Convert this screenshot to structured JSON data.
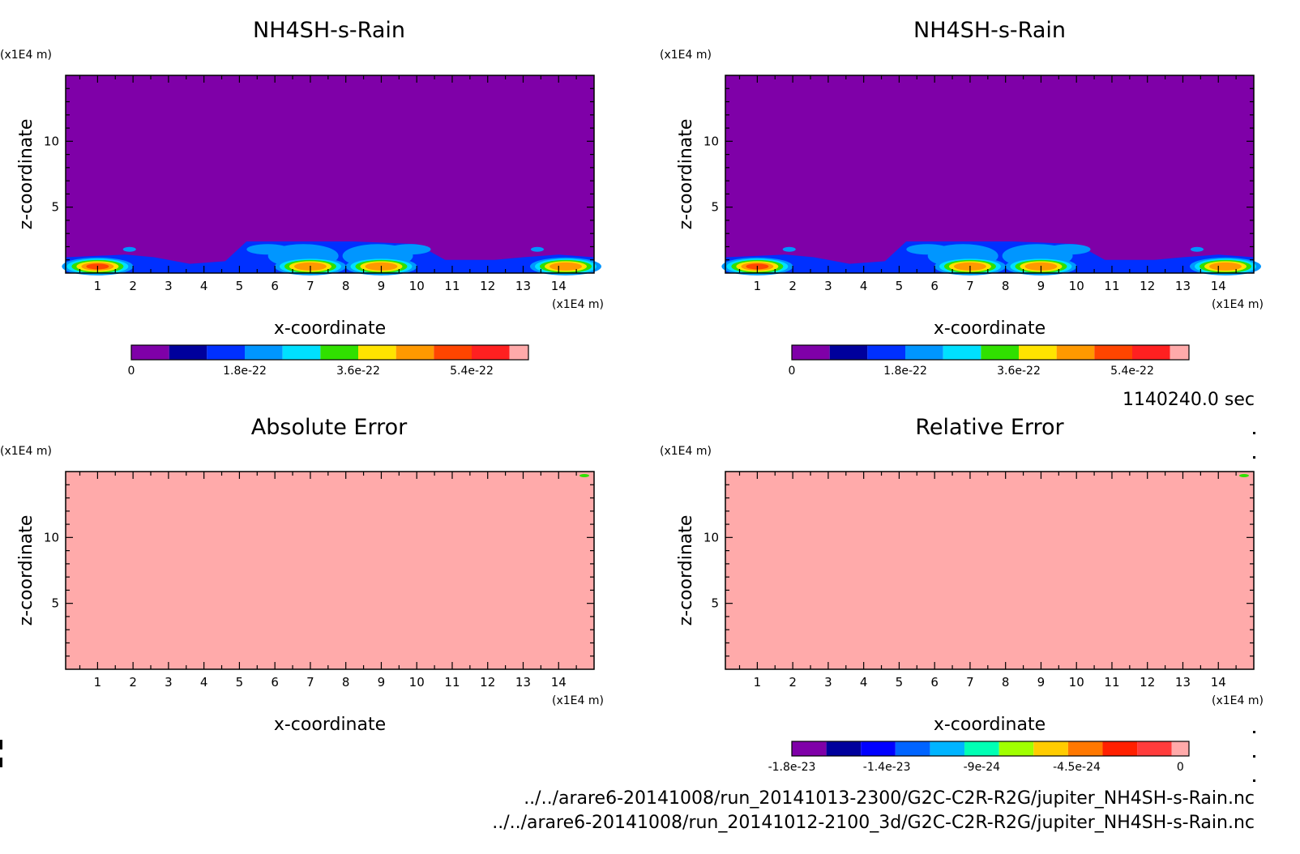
{
  "time_label": "1140240.0 sec",
  "footer": {
    "file_a": "../../arare6-20141008/run_20141013-2300/G2C-C2R-R2G/jupiter_NH4SH-s-Rain.nc",
    "file_b": "../../arare6-20141008/run_20141012-2100_3d/G2C-C2R-R2G/jupiter_NH4SH-s-Rain.nc"
  },
  "colors": {
    "field_bg": "#7f00a8",
    "error_bg": "#ffaaaa",
    "scale_top": [
      "#7f00a8",
      "#00009c",
      "#0030ff",
      "#0096ff",
      "#00e0ff",
      "#30e000",
      "#ffe400",
      "#ff9900",
      "#ff4500",
      "#ff2020",
      "#ffaaaa"
    ],
    "scale_err": [
      "#7f00a8",
      "#00009c",
      "#0000ff",
      "#0064ff",
      "#00b4ff",
      "#00ffb4",
      "#a0ff00",
      "#ffcc00",
      "#ff7800",
      "#ff2000",
      "#ff3c3c",
      "#ffaaaa"
    ]
  },
  "chart_data": [
    {
      "type": "heatmap",
      "title": "NH4SH-s-Rain",
      "xlabel": "x-coordinate",
      "ylabel": "z-coordinate",
      "x_unit": "(x1E4 m)",
      "y_unit": "(x1E4 m)",
      "xlim": [
        0.1,
        15.0
      ],
      "ylim": [
        0,
        15.0
      ],
      "xticks": [
        "1",
        "2",
        "3",
        "4",
        "5",
        "6",
        "7",
        "8",
        "9",
        "10",
        "11",
        "12",
        "13",
        "14"
      ],
      "yticks": [
        "5",
        "10"
      ],
      "colorbar": {
        "labels": [
          "0",
          "1.8e-22",
          "3.6e-22",
          "5.4e-22"
        ],
        "levels": 11,
        "min": 0,
        "max": 6.6e-22
      },
      "features": [
        {
          "x": 1.0,
          "z": 0.5,
          "level": 8
        },
        {
          "x": 7.0,
          "z": 0.5,
          "level": 7
        },
        {
          "x": 9.0,
          "z": 0.5,
          "level": 7
        },
        {
          "x": 14.2,
          "z": 0.5,
          "level": 7
        }
      ]
    },
    {
      "type": "heatmap",
      "title": "NH4SH-s-Rain",
      "xlabel": "x-coordinate",
      "ylabel": "z-coordinate",
      "x_unit": "(x1E4 m)",
      "y_unit": "(x1E4 m)",
      "xlim": [
        0.1,
        15.0
      ],
      "ylim": [
        0,
        15.0
      ],
      "xticks": [
        "1",
        "2",
        "3",
        "4",
        "5",
        "6",
        "7",
        "8",
        "9",
        "10",
        "11",
        "12",
        "13",
        "14"
      ],
      "yticks": [
        "5",
        "10"
      ],
      "colorbar": {
        "labels": [
          "0",
          "1.8e-22",
          "3.6e-22",
          "5.4e-22"
        ],
        "levels": 11,
        "min": 0,
        "max": 6.6e-22
      },
      "features": [
        {
          "x": 1.0,
          "z": 0.5,
          "level": 8
        },
        {
          "x": 7.0,
          "z": 0.5,
          "level": 7
        },
        {
          "x": 9.0,
          "z": 0.5,
          "level": 7
        },
        {
          "x": 14.2,
          "z": 0.5,
          "level": 7
        }
      ]
    },
    {
      "type": "heatmap",
      "title": "Absolute Error",
      "xlabel": "x-coordinate",
      "ylabel": "z-coordinate",
      "x_unit": "(x1E4 m)",
      "y_unit": "(x1E4 m)",
      "xlim": [
        0.1,
        15.0
      ],
      "ylim": [
        0,
        15.0
      ],
      "xticks": [
        "1",
        "2",
        "3",
        "4",
        "5",
        "6",
        "7",
        "8",
        "9",
        "10",
        "11",
        "12",
        "13",
        "14"
      ],
      "yticks": [
        "5",
        "10"
      ],
      "value": 0
    },
    {
      "type": "heatmap",
      "title": "Relative Error",
      "xlabel": "x-coordinate",
      "ylabel": "z-coordinate",
      "x_unit": "(x1E4 m)",
      "y_unit": "(x1E4 m)",
      "xlim": [
        0.1,
        15.0
      ],
      "ylim": [
        0,
        15.0
      ],
      "xticks": [
        "1",
        "2",
        "3",
        "4",
        "5",
        "6",
        "7",
        "8",
        "9",
        "10",
        "11",
        "12",
        "13",
        "14"
      ],
      "yticks": [
        "5",
        "10"
      ],
      "value": 0,
      "colorbar": {
        "labels": [
          "-1.8e-23",
          "-1.4e-23",
          "-9e-24",
          "-4.5e-24",
          "0"
        ],
        "levels": 12,
        "min": -2.2e-23,
        "max": 0
      }
    }
  ]
}
